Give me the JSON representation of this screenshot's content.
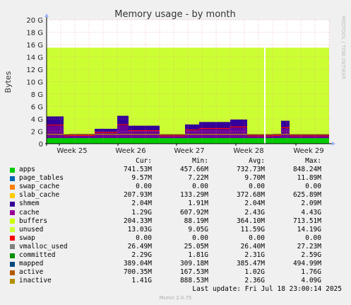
{
  "chart_data": {
    "type": "area",
    "title": "Memory usage - by month",
    "ylabel": "Bytes",
    "ylim": [
      0,
      20
    ],
    "y_unit": "G",
    "y_ticks": [
      "0",
      "2 G",
      "4 G",
      "6 G",
      "8 G",
      "10 G",
      "12 G",
      "14 G",
      "16 G",
      "18 G",
      "20 G"
    ],
    "x_ticks": [
      "Week 25",
      "Week 26",
      "Week 27",
      "Week 28",
      "Week 29"
    ],
    "side_label": "RRDTOOL / TOBI OETIKER",
    "grid": true,
    "stacked_totals_G": 15.5,
    "stack_segments": [
      {
        "w": 0.06,
        "cache": 3.5,
        "swap": 0.3
      },
      {
        "w": 0.02,
        "cache": 0.6,
        "swap": 0.2
      },
      {
        "w": 0.09,
        "cache": 0.7,
        "swap": 0.2
      },
      {
        "w": 0.08,
        "cache": 1.5,
        "swap": 0.3
      },
      {
        "w": 0.04,
        "cache": 3.6,
        "swap": 0.3
      },
      {
        "w": 0.11,
        "cache": 2.0,
        "swap": 0.3
      },
      {
        "w": 0.09,
        "cache": 0.6,
        "swap": 0.2
      },
      {
        "w": 0.05,
        "cache": 2.2,
        "swap": 0.3
      },
      {
        "w": 0.11,
        "cache": 2.6,
        "swap": 0.3
      },
      {
        "w": 0.06,
        "cache": 3.0,
        "swap": 0.3
      },
      {
        "w": 0.09,
        "cache": 0.6,
        "swap": 0.2
      },
      {
        "w": 0.03,
        "cache": 0.7,
        "swap": 0.3
      },
      {
        "w": 0.03,
        "cache": 2.8,
        "swap": 0.3
      },
      {
        "w": 0.14,
        "cache": 0.6,
        "swap": 0.2
      }
    ],
    "legend_headers": [
      "Cur:",
      "Min:",
      "Avg:",
      "Max:"
    ],
    "series": [
      {
        "name": "apps",
        "color": "#00cc00",
        "cur": "741.53M",
        "min": "457.66M",
        "avg": "732.73M",
        "max": "848.24M"
      },
      {
        "name": "page_tables",
        "color": "#0066b3",
        "cur": "9.57M",
        "min": "7.22M",
        "avg": "9.70M",
        "max": "11.89M"
      },
      {
        "name": "swap_cache",
        "color": "#ff8000",
        "cur": "0.00",
        "min": "0.00",
        "avg": "0.00",
        "max": "0.00"
      },
      {
        "name": "slab_cache",
        "color": "#ffcc00",
        "cur": "207.93M",
        "min": "133.29M",
        "avg": "372.68M",
        "max": "625.89M"
      },
      {
        "name": "shmem",
        "color": "#330099",
        "cur": "2.04M",
        "min": "1.91M",
        "avg": "2.04M",
        "max": "2.09M"
      },
      {
        "name": "cache",
        "color": "#990099",
        "cur": "1.29G",
        "min": "607.92M",
        "avg": "2.43G",
        "max": "4.43G"
      },
      {
        "name": "buffers",
        "color": "#ccff00",
        "cur": "204.33M",
        "min": "88.19M",
        "avg": "364.10M",
        "max": "713.51M"
      },
      {
        "name": "unused",
        "color": "#ccff33",
        "cur": "13.03G",
        "min": "9.05G",
        "avg": "11.59G",
        "max": "14.19G"
      },
      {
        "name": "swap",
        "color": "#ff0000",
        "cur": "0.00",
        "min": "0.00",
        "avg": "0.00",
        "max": "0.00"
      },
      {
        "name": "vmalloc_used",
        "color": "#808080",
        "cur": "26.49M",
        "min": "25.05M",
        "avg": "26.40M",
        "max": "27.23M"
      },
      {
        "name": "committed",
        "color": "#008f00",
        "cur": "2.29G",
        "min": "1.81G",
        "avg": "2.31G",
        "max": "2.59G"
      },
      {
        "name": "mapped",
        "color": "#00487d",
        "cur": "389.04M",
        "min": "309.18M",
        "avg": "385.47M",
        "max": "494.99M"
      },
      {
        "name": "active",
        "color": "#b35a00",
        "cur": "700.35M",
        "min": "167.53M",
        "avg": "1.02G",
        "max": "1.76G"
      },
      {
        "name": "inactive",
        "color": "#b38f00",
        "cur": "1.41G",
        "min": "888.53M",
        "avg": "2.36G",
        "max": "4.09G"
      }
    ],
    "last_update": "Last update: Fri Jul 18 23:00:14 2025",
    "footer": "Munin 2.0.75"
  }
}
